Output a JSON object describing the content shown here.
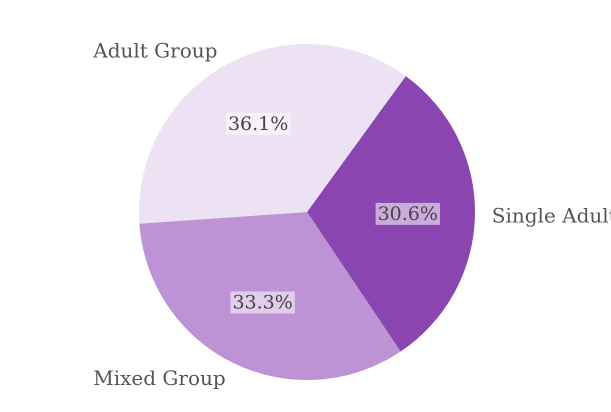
{
  "chart_data": {
    "type": "pie",
    "categories": [
      "Single Adult",
      "Mixed Group",
      "Adult Group"
    ],
    "values": [
      30.6,
      33.3,
      36.1
    ],
    "labels": [
      "30.6%",
      "33.3%",
      "36.1%"
    ],
    "colors": [
      "#8b45b0",
      "#bd93d6",
      "#ede2f4"
    ],
    "start_angle_deg": -54,
    "direction": "clockwise",
    "legend": "none"
  }
}
